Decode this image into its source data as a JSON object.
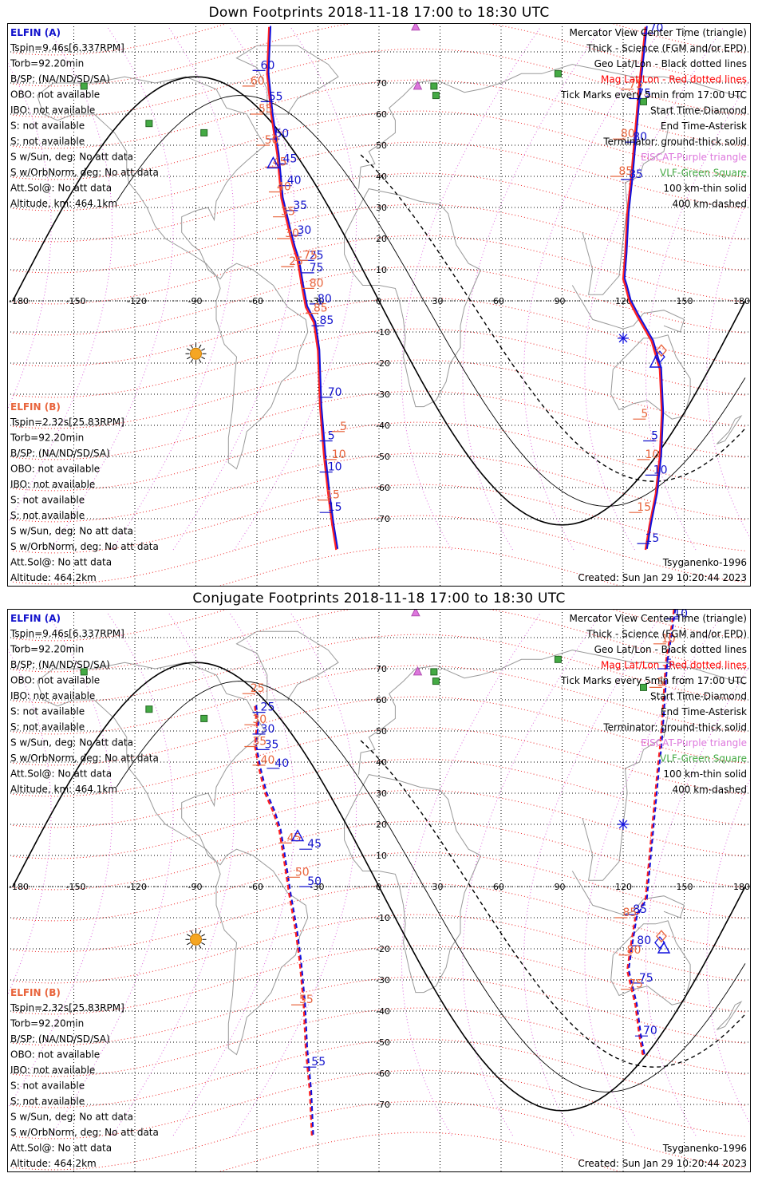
{
  "panels": [
    {
      "title": "Down Footprints 2018-11-18 17:00 to 18:30 UTC",
      "sc_a": {
        "name": "ELFIN (A)",
        "lines": [
          "Tspin=9.46s[6.337RPM]",
          "Torb=92.20min",
          "B/SP: (NA/ND/SD/SA)",
          "OBO: not available",
          "IBO: not available",
          "S: not available",
          "S: not available",
          "S w/Sun, deg: No att data",
          "S w/OrbNorm, deg: No att data",
          "Att.Sol@: No att data",
          "Altitude, km: 464.1km"
        ]
      },
      "sc_b": {
        "name": "ELFIN (B)",
        "lines": [
          "Tspin=2.32s[25.83RPM]",
          "Torb=92.20min",
          "B/SP: (NA/ND/SD/SA)",
          "OBO: not available",
          "IBO: not available",
          "S: not available",
          "S: not available",
          "S w/Sun, deg: No att data",
          "S w/OrbNorm, deg: No att data",
          "Att.Sol@: No att data",
          "Altitude: 464.2km"
        ]
      },
      "legend": [
        {
          "text": "Mercator View Center Time (triangle)",
          "color": "#000000"
        },
        {
          "text": "Thick - Science (FGM and/or EPD)",
          "color": "#000000"
        },
        {
          "text": "Geo Lat/Lon - Black dotted lines",
          "color": "#000000"
        },
        {
          "text": "Mag Lat/Lon - Red dotted lines",
          "color": "#ff0000"
        },
        {
          "text": "Tick Marks every 5min from 17:00 UTC",
          "color": "#000000"
        },
        {
          "text": "Start Time-Diamond",
          "color": "#000000"
        },
        {
          "text": "End Time-Asterisk",
          "color": "#000000"
        },
        {
          "text": "Terminator: ground-thick solid",
          "color": "#000000"
        },
        {
          "text": "EISCAT-Purple triangle",
          "color": "#dd77dd"
        },
        {
          "text": "VLF-Green Square",
          "color": "#44aa44"
        },
        {
          "text": "100 km-thin solid",
          "color": "#000000"
        },
        {
          "text": "400 km-dashed",
          "color": "#000000"
        }
      ],
      "model": "Tsyganenko-1996",
      "created": "Created: Sun Jan 29 10:20:44 2023",
      "track_a": [
        [
          -54,
          88
        ],
        [
          -55,
          73
        ],
        [
          -53,
          60
        ],
        [
          -50,
          47
        ],
        [
          -48,
          33
        ],
        [
          -44,
          22
        ],
        [
          -42,
          17
        ],
        [
          -40,
          13
        ],
        [
          -38,
          5
        ],
        [
          -36,
          -2
        ],
        [
          -32,
          -7
        ],
        [
          -30,
          -16
        ],
        [
          -29,
          -34
        ],
        [
          -27,
          -50
        ],
        [
          -25,
          -62
        ],
        [
          -23,
          -72
        ],
        [
          -21,
          -80
        ]
      ],
      "track_a2": [
        [
          131,
          88
        ],
        [
          128,
          70
        ],
        [
          126,
          55
        ],
        [
          124,
          40
        ],
        [
          122,
          28
        ],
        [
          121,
          15
        ],
        [
          120,
          7
        ],
        [
          121,
          5
        ],
        [
          123,
          0
        ],
        [
          127,
          -5
        ],
        [
          134,
          -13
        ],
        [
          138,
          -22
        ],
        [
          139,
          -36
        ],
        [
          138,
          -50
        ],
        [
          136,
          -62
        ],
        [
          133,
          -72
        ],
        [
          131,
          -80
        ]
      ],
      "ticks_a_blue": [
        [
          "60",
          -59,
          74
        ],
        [
          "55",
          -55,
          64
        ],
        [
          "50",
          -52,
          52
        ],
        [
          "45",
          -48,
          44
        ],
        [
          "40",
          -46,
          37
        ],
        [
          "35",
          -43,
          29
        ],
        [
          "30",
          -41,
          21
        ],
        [
          "25",
          -35,
          13
        ],
        [
          "75",
          -35,
          9
        ],
        [
          "80",
          -31,
          -1
        ],
        [
          "85",
          -30,
          -8
        ],
        [
          "70",
          -26,
          -31
        ],
        [
          "5",
          -26,
          -45
        ],
        [
          "10",
          -26,
          -55
        ],
        [
          "15",
          -26,
          -68
        ]
      ],
      "ticks_a_red": [
        [
          "60",
          -64,
          69
        ],
        [
          "55",
          -60,
          60
        ],
        [
          "50",
          -57,
          50
        ],
        [
          "45",
          -53,
          43
        ],
        [
          "40",
          -51,
          35
        ],
        [
          "35",
          -49,
          27
        ],
        [
          "30",
          -47,
          20
        ],
        [
          "25",
          -45,
          11
        ],
        [
          "75",
          -38,
          13
        ],
        [
          "80",
          -35,
          4
        ],
        [
          "85",
          -33,
          -4
        ],
        [
          "5",
          -20,
          -42
        ],
        [
          "10",
          -24,
          -51
        ],
        [
          "15",
          -27,
          -64
        ]
      ],
      "ticks_b_blue": [
        [
          "75",
          126,
          65
        ],
        [
          "80",
          124,
          51
        ],
        [
          "85",
          122,
          39
        ],
        [
          "70",
          132,
          86
        ],
        [
          "5",
          133,
          -45
        ],
        [
          "10",
          134,
          -56
        ],
        [
          "15",
          130,
          -78
        ]
      ],
      "ticks_b_red": [
        [
          "75",
          122,
          68
        ],
        [
          "80",
          118,
          52
        ],
        [
          "85",
          117,
          40
        ],
        [
          "5",
          128,
          -38
        ],
        [
          "10",
          130,
          -51
        ],
        [
          "15",
          126,
          -68
        ]
      ],
      "center_a": [
        -52,
        44
      ],
      "center_b": [
        136,
        -20
      ],
      "start_a": [
        138,
        -18
      ],
      "end_a": [
        120,
        -12
      ]
    },
    {
      "title": "Conjugate Footprints 2018-11-18 17:00 to 18:30 UTC",
      "sc_a": {
        "name": "ELFIN (A)",
        "lines": [
          "Tspin=9.46s[6.337RPM]",
          "Torb=92.20min",
          "B/SP: (NA/ND/SD/SA)",
          "OBO: not available",
          "IBO: not available",
          "S: not available",
          "S: not available",
          "S w/Sun, deg: No att data",
          "S w/OrbNorm, deg: No att data",
          "Att.Sol@: No att data",
          "Altitude, km: 464.1km"
        ]
      },
      "sc_b": {
        "name": "ELFIN (B)",
        "lines": [
          "Tspin=2.32s[25.83RPM]",
          "Torb=92.20min",
          "B/SP: (NA/ND/SD/SA)",
          "OBO: not available",
          "IBO: not available",
          "S: not available",
          "S: not available",
          "S w/Sun, deg: No att data",
          "S w/OrbNorm, deg: No att data",
          "Att.Sol@: No att data",
          "Altitude: 464.2km"
        ]
      },
      "legend": [
        {
          "text": "Mercator View Center Time (triangle)",
          "color": "#000000"
        },
        {
          "text": "Thick - Science (FGM and/or EPD)",
          "color": "#000000"
        },
        {
          "text": "Geo Lat/Lon - Black dotted lines",
          "color": "#000000"
        },
        {
          "text": "Mag Lat/Lon - Red dotted lines",
          "color": "#ff0000"
        },
        {
          "text": "Tick Marks every 5min from 17:00 UTC",
          "color": "#000000"
        },
        {
          "text": "Start Time-Diamond",
          "color": "#000000"
        },
        {
          "text": "End Time-Asterisk",
          "color": "#000000"
        },
        {
          "text": "Terminator: ground-thick solid",
          "color": "#000000"
        },
        {
          "text": "EISCAT-Purple triangle",
          "color": "#dd77dd"
        },
        {
          "text": "VLF-Green Square",
          "color": "#44aa44"
        },
        {
          "text": "100 km-thin solid",
          "color": "#000000"
        },
        {
          "text": "400 km-dashed",
          "color": "#000000"
        }
      ],
      "model": "Tsyganenko-1996",
      "created": "Created: Sun Jan 29 10:20:44 2023",
      "track_a": [
        [
          -61,
          58
        ],
        [
          -60,
          52
        ],
        [
          -61,
          45
        ],
        [
          -59,
          38
        ],
        [
          -56,
          30
        ],
        [
          -52,
          24
        ],
        [
          -49,
          18
        ],
        [
          -47,
          10
        ],
        [
          -44,
          -3
        ],
        [
          -41,
          -14
        ],
        [
          -39,
          -24
        ],
        [
          -37,
          -38
        ],
        [
          -36,
          -52
        ],
        [
          -34,
          -66
        ],
        [
          -33,
          -80
        ]
      ],
      "track_a2": [
        [
          145,
          89
        ],
        [
          143,
          80
        ],
        [
          141,
          72
        ],
        [
          140,
          62
        ],
        [
          139,
          52
        ],
        [
          138,
          44
        ],
        [
          137,
          38
        ],
        [
          131,
          -4
        ],
        [
          126,
          -10
        ],
        [
          124,
          -18
        ],
        [
          122,
          -27
        ],
        [
          126,
          -38
        ],
        [
          128,
          -48
        ],
        [
          130,
          -55
        ]
      ],
      "ticks_a_blue": [
        [
          "25",
          -59,
          56
        ],
        [
          "30",
          -59,
          49
        ],
        [
          "35",
          -57,
          44
        ],
        [
          "40",
          -52,
          38
        ],
        [
          "45",
          -36,
          12
        ],
        [
          "50",
          -36,
          0
        ],
        [
          "55",
          -34,
          -58
        ]
      ],
      "ticks_a_red": [
        [
          "25",
          -64,
          62
        ],
        [
          "30",
          -63,
          52
        ],
        [
          "35",
          -63,
          45
        ],
        [
          "40",
          -59,
          39
        ],
        [
          "45",
          -46,
          14
        ],
        [
          "50",
          -42,
          3
        ],
        [
          "55",
          -40,
          -38
        ]
      ],
      "ticks_b_blue": [
        [
          "10",
          144,
          86
        ],
        [
          "5",
          140,
          70
        ],
        [
          "85",
          124,
          -9
        ],
        [
          "80",
          126,
          -19
        ],
        [
          "75",
          127,
          -31
        ],
        [
          "70",
          129,
          -48
        ]
      ],
      "ticks_b_red": [
        [
          "10",
          138,
          78
        ],
        [
          "5",
          136,
          64
        ],
        [
          "85",
          119,
          -10
        ],
        [
          "80",
          121,
          -22
        ],
        [
          "75",
          122,
          -33
        ]
      ],
      "center_a": [
        -40,
        16
      ],
      "center_b": [
        140,
        -20
      ],
      "start_a": [
        138,
        -18
      ],
      "end_a": [
        120,
        20
      ]
    }
  ]
}
